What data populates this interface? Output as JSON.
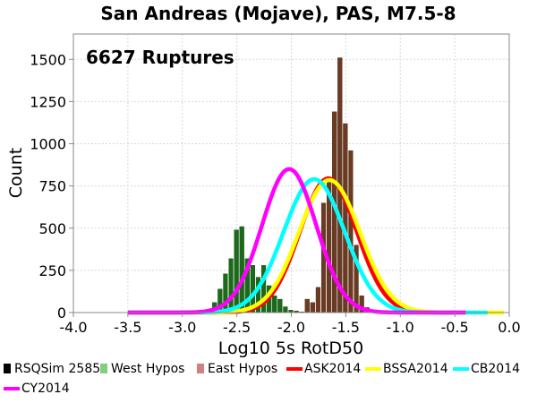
{
  "chart_data": {
    "type": "bar",
    "title": "San Andreas (Mojave), PAS, M7.5-8",
    "annotation": "6627 Ruptures",
    "xlabel": "Log10 5s RotD50",
    "ylabel": "Count",
    "xlim": [
      -4.0,
      0.0
    ],
    "ylim": [
      0,
      1650
    ],
    "x_ticks": [
      "-4.0",
      "-3.5",
      "-3.0",
      "-2.5",
      "-2.0",
      "-1.5",
      "-1.0",
      "-0.5",
      "0.0"
    ],
    "y_ticks": [
      "0",
      "250",
      "500",
      "750",
      "1000",
      "1250",
      "1500"
    ],
    "grid": true,
    "legend_position": "bottom",
    "bin_width": 0.05,
    "bins": [
      {
        "x": -2.75,
        "rsqsim": 20,
        "west": 20,
        "east": 0
      },
      {
        "x": -2.7,
        "rsqsim": 60,
        "west": 60,
        "east": 0
      },
      {
        "x": -2.65,
        "rsqsim": 140,
        "west": 140,
        "east": 0
      },
      {
        "x": -2.6,
        "rsqsim": 230,
        "west": 230,
        "east": 0
      },
      {
        "x": -2.55,
        "rsqsim": 320,
        "west": 320,
        "east": 0
      },
      {
        "x": -2.5,
        "rsqsim": 490,
        "west": 490,
        "east": 0
      },
      {
        "x": -2.45,
        "rsqsim": 510,
        "west": 510,
        "east": 0
      },
      {
        "x": -2.4,
        "rsqsim": 320,
        "west": 320,
        "east": 0
      },
      {
        "x": -2.35,
        "rsqsim": 280,
        "west": 280,
        "east": 0
      },
      {
        "x": -2.3,
        "rsqsim": 210,
        "west": 210,
        "east": 0
      },
      {
        "x": -2.25,
        "rsqsim": 280,
        "west": 280,
        "east": 0
      },
      {
        "x": -2.2,
        "rsqsim": 160,
        "west": 160,
        "east": 0
      },
      {
        "x": -2.15,
        "rsqsim": 100,
        "west": 100,
        "east": 0
      },
      {
        "x": -2.1,
        "rsqsim": 80,
        "west": 80,
        "east": 0
      },
      {
        "x": -2.05,
        "rsqsim": 35,
        "west": 35,
        "east": 0
      },
      {
        "x": -2.0,
        "rsqsim": 15,
        "west": 15,
        "east": 0
      },
      {
        "x": -1.95,
        "rsqsim": 10,
        "west": 5,
        "east": 5
      },
      {
        "x": -1.9,
        "rsqsim": 5,
        "west": 0,
        "east": 5
      },
      {
        "x": -1.85,
        "rsqsim": 80,
        "west": 0,
        "east": 80
      },
      {
        "x": -1.8,
        "rsqsim": 60,
        "west": 0,
        "east": 60
      },
      {
        "x": -1.75,
        "rsqsim": 150,
        "west": 0,
        "east": 150
      },
      {
        "x": -1.7,
        "rsqsim": 650,
        "west": 0,
        "east": 650
      },
      {
        "x": -1.65,
        "rsqsim": 780,
        "west": 0,
        "east": 780
      },
      {
        "x": -1.6,
        "rsqsim": 1190,
        "west": 0,
        "east": 1190
      },
      {
        "x": -1.55,
        "rsqsim": 1510,
        "west": 0,
        "east": 1510
      },
      {
        "x": -1.5,
        "rsqsim": 1120,
        "west": 0,
        "east": 1120
      },
      {
        "x": -1.45,
        "rsqsim": 960,
        "west": 0,
        "east": 960
      },
      {
        "x": -1.4,
        "rsqsim": 400,
        "west": 0,
        "east": 400
      },
      {
        "x": -1.35,
        "rsqsim": 100,
        "west": 0,
        "east": 100
      },
      {
        "x": -1.3,
        "rsqsim": 30,
        "west": 0,
        "east": 30
      },
      {
        "x": -1.25,
        "rsqsim": 10,
        "west": 0,
        "east": 10
      }
    ],
    "gmpe_curves": [
      {
        "name": "ASK2014",
        "color": "#ff0000",
        "mu": -1.66,
        "peak": 795,
        "sigma": 0.26,
        "x_range": [
          -3.5,
          -0.5
        ]
      },
      {
        "name": "BSSA2014",
        "color": "#ffff00",
        "mu": -1.65,
        "peak": 785,
        "sigma": 0.28,
        "x_range": [
          -3.5,
          -0.05
        ]
      },
      {
        "name": "CB2014",
        "color": "#00ffff",
        "mu": -1.79,
        "peak": 790,
        "sigma": 0.28,
        "x_range": [
          -3.5,
          -0.2
        ]
      },
      {
        "name": "CY2014",
        "color": "#ff00ff",
        "mu": -2.02,
        "peak": 850,
        "sigma": 0.25,
        "x_range": [
          -3.5,
          -0.4
        ]
      }
    ],
    "legend": [
      {
        "name": "RSQSim 2585",
        "color": "#000000",
        "kind": "bar"
      },
      {
        "name": "West Hypos",
        "color": "#7fcf7f",
        "kind": "bar"
      },
      {
        "name": "East Hypos",
        "color": "#d08080",
        "kind": "bar"
      },
      {
        "name": "ASK2014",
        "color": "#ff0000",
        "kind": "line"
      },
      {
        "name": "BSSA2014",
        "color": "#ffff00",
        "kind": "line"
      },
      {
        "name": "CB2014",
        "color": "#00ffff",
        "kind": "line"
      },
      {
        "name": "CY2014",
        "color": "#ff00ff",
        "kind": "line"
      }
    ],
    "colors": {
      "rsqsim": "#000000",
      "west_fill": "#1a6a1a",
      "east_fill": "#6b3a22",
      "grid": "#d8d8d8"
    }
  }
}
